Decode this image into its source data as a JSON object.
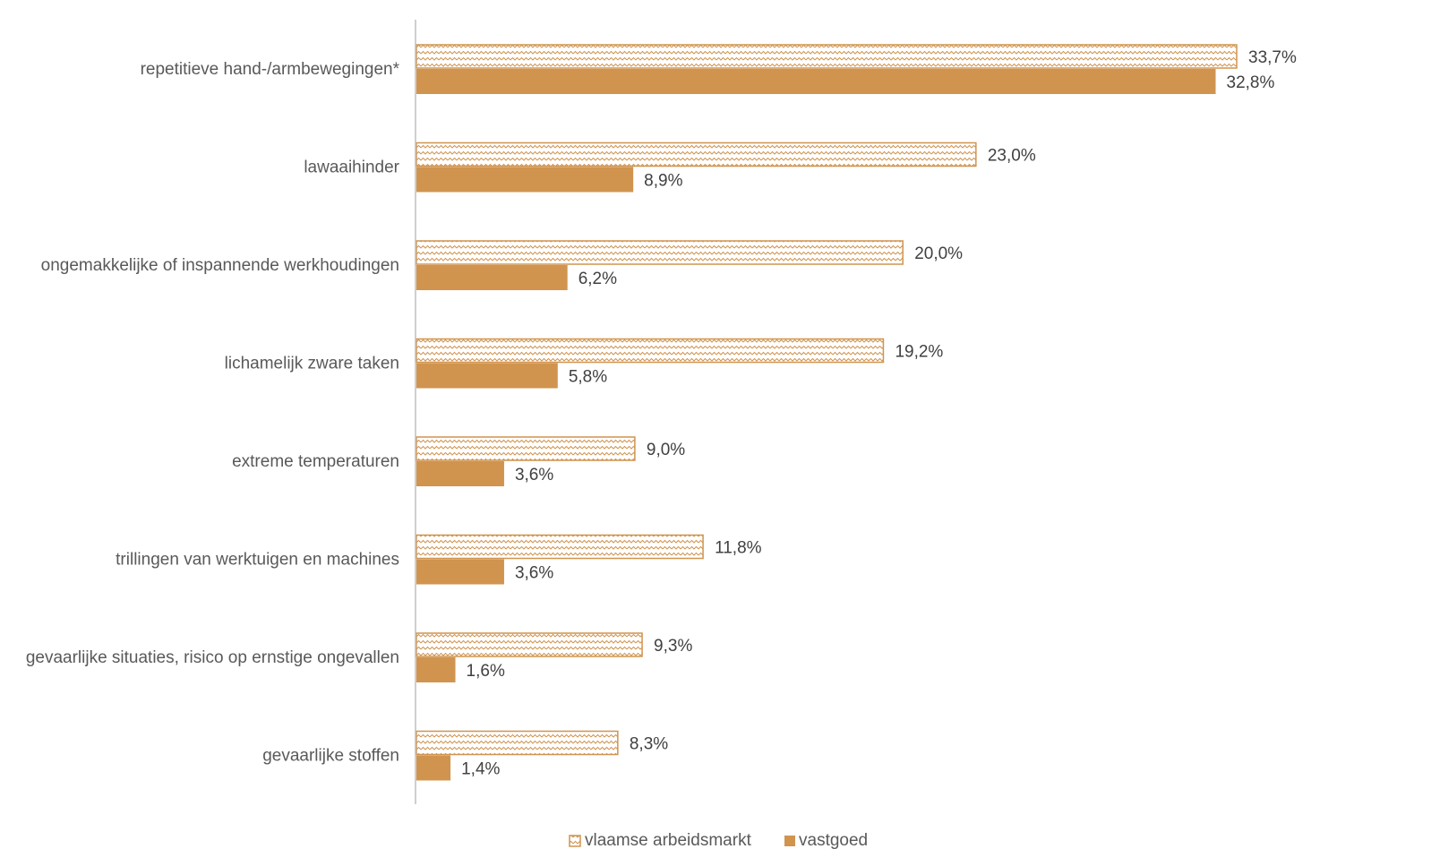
{
  "chart_data": {
    "type": "bar",
    "orientation": "horizontal",
    "categories": [
      "repetitieve hand-/armbewegingen*",
      "lawaaihinder",
      "ongemakkelijke of inspannende werkhoudingen",
      "lichamelijk zware taken",
      "extreme temperaturen",
      "trillingen van werktuigen en machines",
      "gevaarlijke situaties, risico op ernstige ongevallen",
      "gevaarlijke stoffen"
    ],
    "series": [
      {
        "name": "vlaamse arbeidsmarkt",
        "values": [
          33.7,
          23.0,
          20.0,
          19.2,
          9.0,
          11.8,
          9.3,
          8.3
        ],
        "labels": [
          "33,7%",
          "23,0%",
          "20,0%",
          "19,2%",
          "9,0%",
          "11,8%",
          "9,3%",
          "8,3%"
        ],
        "fill": "hatched",
        "color": "#D0944F"
      },
      {
        "name": "vastgoed",
        "values": [
          32.8,
          8.9,
          6.2,
          5.8,
          3.6,
          3.6,
          1.6,
          1.4
        ],
        "labels": [
          "32,8%",
          "8,9%",
          "6,2%",
          "5,8%",
          "3,6%",
          "3,6%",
          "1,6%",
          "1,4%"
        ],
        "fill": "solid",
        "color": "#D0944F"
      }
    ],
    "xlim": [
      0,
      37
    ],
    "grid": false,
    "legend": "bottom",
    "axis_color": "#BFBFBF"
  }
}
